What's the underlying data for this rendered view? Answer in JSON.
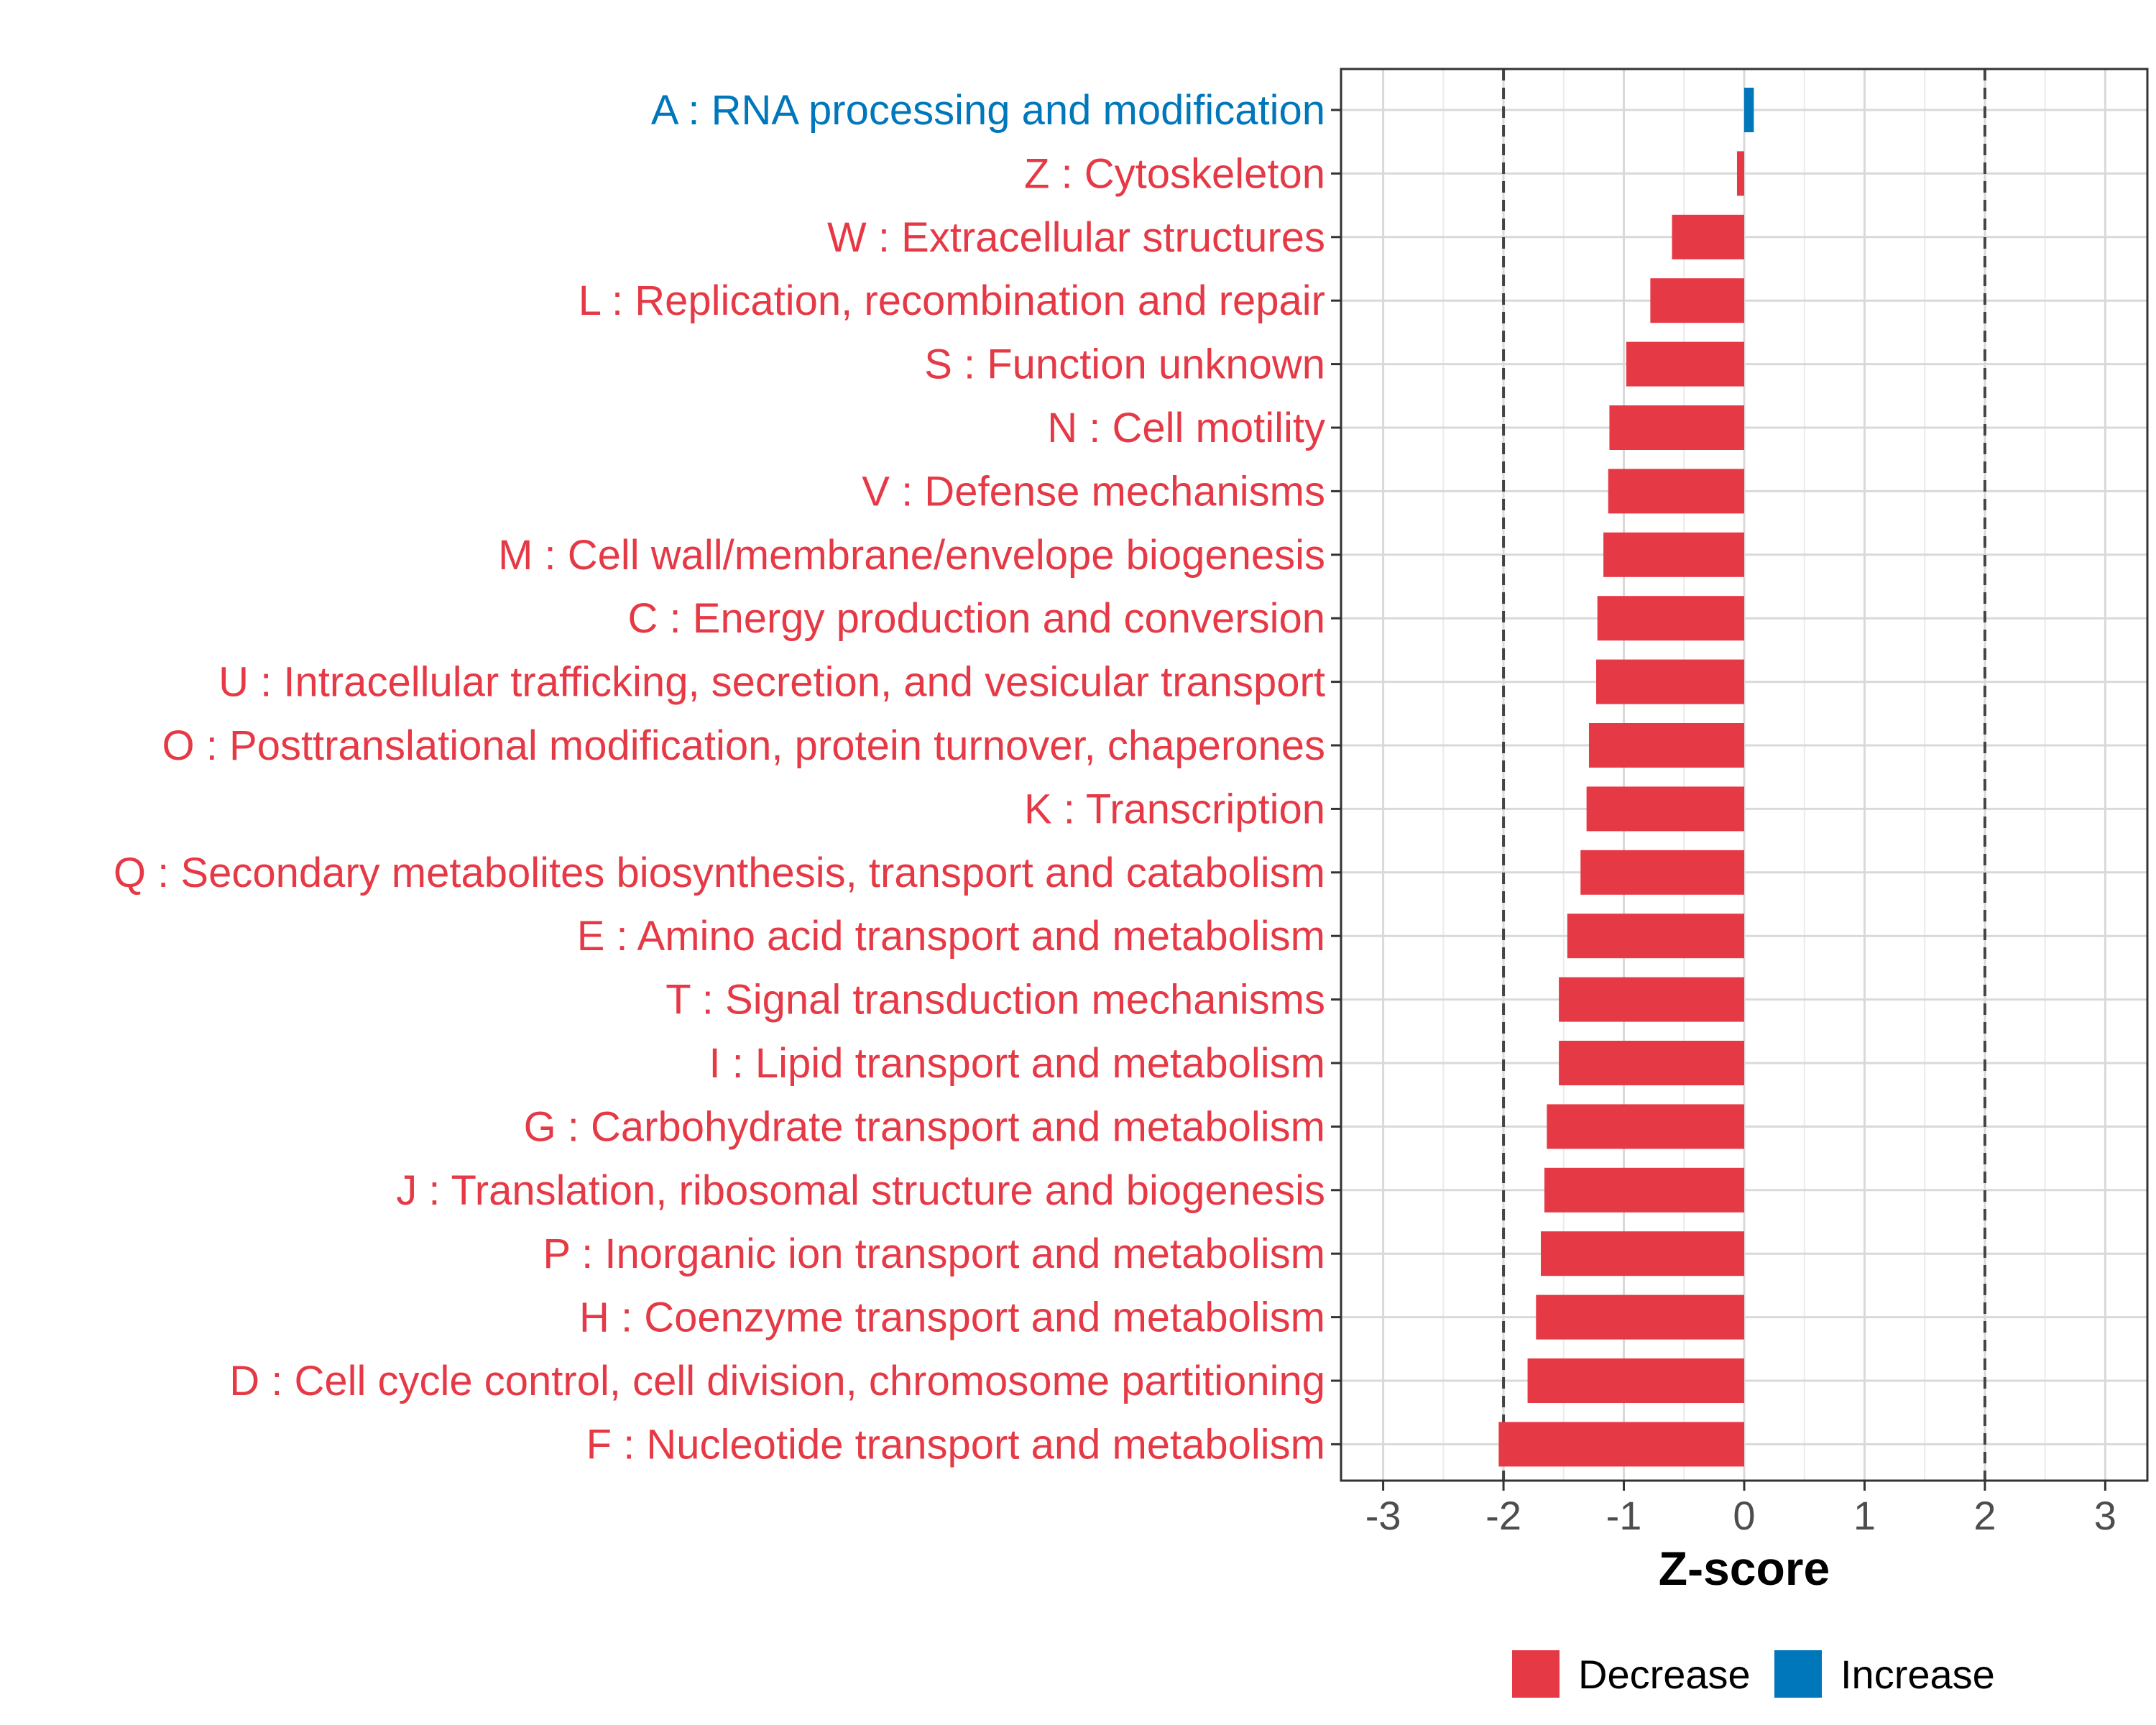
{
  "chart_data": {
    "type": "bar",
    "orientation": "horizontal",
    "title": "",
    "xlabel": "Z-score",
    "ylabel": "",
    "xlim": [
      -3.35,
      3.35
    ],
    "xticks": [
      -3,
      -2,
      -1,
      0,
      1,
      2,
      3
    ],
    "xtick_labels": [
      "-3",
      "-2",
      "-1",
      "0",
      "1",
      "2",
      "3"
    ],
    "reference_lines": [
      -2,
      2
    ],
    "grid": true,
    "legend_position": "bottom",
    "colors": {
      "Decrease": "#e63946",
      "Increase": "#0077bb"
    },
    "legend": [
      {
        "label": "Decrease",
        "color": "#e63946"
      },
      {
        "label": "Increase",
        "color": "#0077bb"
      }
    ],
    "categories": [
      "A : RNA processing and modification",
      "Z : Cytoskeleton",
      "W : Extracellular structures",
      "L : Replication, recombination and repair",
      "S : Function unknown",
      "N : Cell motility",
      "V : Defense mechanisms",
      "M : Cell wall/membrane/envelope biogenesis",
      "C : Energy production and conversion",
      "U : Intracellular trafficking, secretion, and vesicular transport",
      "O : Posttranslational modification, protein turnover, chaperones",
      "K : Transcription",
      "Q : Secondary metabolites biosynthesis, transport and catabolism",
      "E : Amino acid transport and metabolism",
      "T : Signal transduction mechanisms",
      "I : Lipid transport and metabolism",
      "G : Carbohydrate transport and metabolism",
      "J : Translation, ribosomal structure and biogenesis",
      "P : Inorganic ion transport and metabolism",
      "H : Coenzyme transport and metabolism",
      "D : Cell cycle control, cell division, chromosome partitioning",
      "F : Nucleotide transport and metabolism"
    ],
    "values": [
      0.08,
      -0.06,
      -0.6,
      -0.78,
      -0.98,
      -1.12,
      -1.13,
      -1.17,
      -1.22,
      -1.23,
      -1.29,
      -1.31,
      -1.36,
      -1.47,
      -1.54,
      -1.54,
      -1.64,
      -1.66,
      -1.69,
      -1.73,
      -1.8,
      -2.04
    ],
    "direction": [
      "Increase",
      "Decrease",
      "Decrease",
      "Decrease",
      "Decrease",
      "Decrease",
      "Decrease",
      "Decrease",
      "Decrease",
      "Decrease",
      "Decrease",
      "Decrease",
      "Decrease",
      "Decrease",
      "Decrease",
      "Decrease",
      "Decrease",
      "Decrease",
      "Decrease",
      "Decrease",
      "Decrease",
      "Decrease"
    ]
  }
}
